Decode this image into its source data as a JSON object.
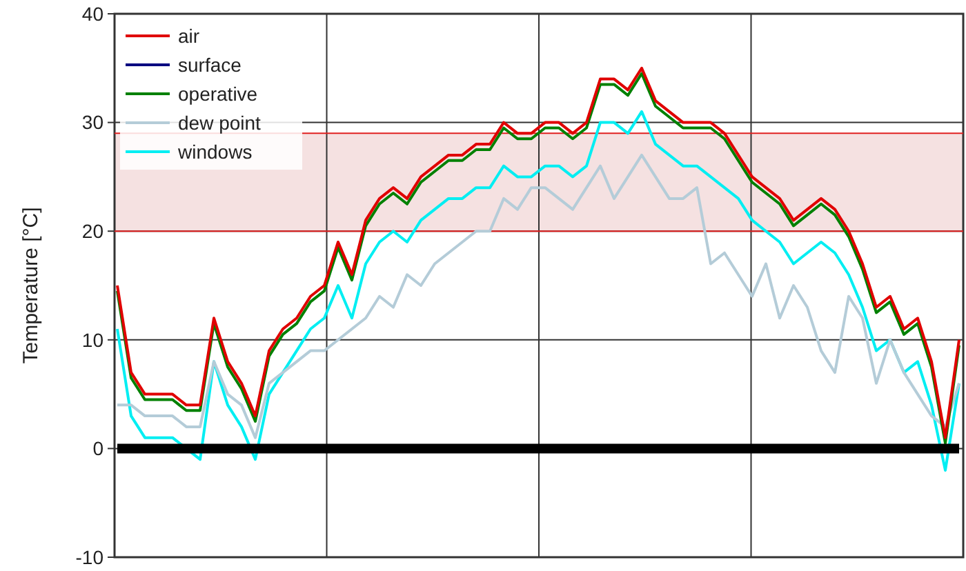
{
  "chart_data": {
    "type": "line",
    "ylabel": "Temperature [°C]",
    "categories": [
      null,
      null,
      null,
      null,
      null,
      null,
      null,
      null,
      null,
      null,
      null,
      null,
      null,
      null,
      null,
      null,
      null,
      null,
      null,
      null,
      null,
      null,
      null,
      null,
      null,
      null,
      null,
      null,
      null,
      null,
      null,
      null,
      null,
      null,
      null,
      null,
      null,
      null,
      null,
      null,
      null,
      null,
      null,
      null,
      null,
      null,
      null,
      null,
      null,
      null,
      null,
      null,
      null,
      null,
      null,
      null,
      null,
      null,
      null,
      null,
      null,
      null
    ],
    "series": [
      {
        "color": "#000000",
        "values": [
          0,
          0,
          0,
          0,
          0,
          0,
          0,
          0,
          0,
          0,
          0,
          0,
          0,
          0,
          0,
          0,
          0,
          0,
          0,
          0,
          0,
          0,
          0,
          0,
          0,
          0,
          0,
          0,
          0,
          0,
          0,
          0,
          0,
          0,
          0,
          0,
          0,
          0,
          0,
          0,
          0,
          0,
          0,
          0,
          0,
          0,
          0,
          0,
          0,
          0,
          0,
          0,
          0,
          0,
          0,
          0,
          0,
          0,
          0,
          0,
          0,
          0
        ]
      },
      {
        "name": "air",
        "color": "#e00000",
        "values": [
          15,
          7,
          5,
          5,
          5,
          4,
          4,
          12,
          8,
          6,
          3,
          9,
          11,
          12,
          14,
          15,
          19,
          16,
          21,
          23,
          24,
          23,
          25,
          26,
          27,
          27,
          28,
          28,
          30,
          29,
          29,
          30,
          30,
          29,
          30,
          34,
          34,
          33,
          35,
          32,
          31,
          30,
          30,
          30,
          29,
          27,
          25,
          24,
          23,
          21,
          22,
          23,
          22,
          20,
          17,
          13,
          14,
          11,
          12,
          8,
          1,
          10
        ]
      },
      {
        "name": "surface",
        "color": "#000080",
        "values": [
          null,
          null,
          null,
          null,
          null,
          null,
          null,
          null,
          null,
          null,
          null,
          null,
          null,
          null,
          null,
          null,
          null,
          null,
          null,
          null,
          null,
          null,
          null,
          null,
          null,
          null,
          null,
          null,
          null,
          null,
          null,
          null,
          null,
          null,
          null,
          null,
          null,
          null,
          null,
          null,
          null,
          null,
          null,
          null,
          null,
          null,
          null,
          null,
          null,
          null,
          null,
          null,
          null,
          null,
          null,
          null,
          null,
          null,
          null,
          null,
          null,
          null
        ]
      },
      {
        "name": "operative",
        "color": "#008000",
        "values": [
          14.5,
          6.5,
          4.5,
          4.5,
          4.5,
          3.5,
          3.5,
          11.5,
          7.5,
          5.5,
          2.5,
          8.5,
          10.5,
          11.5,
          13.5,
          14.5,
          18.5,
          15.5,
          20.5,
          22.5,
          23.5,
          22.5,
          24.5,
          25.5,
          26.5,
          26.5,
          27.5,
          27.5,
          29.5,
          28.5,
          28.5,
          29.5,
          29.5,
          28.5,
          29.5,
          33.5,
          33.5,
          32.5,
          34.5,
          31.5,
          30.5,
          29.5,
          29.5,
          29.5,
          28.5,
          26.5,
          24.5,
          23.5,
          22.5,
          20.5,
          21.5,
          22.5,
          21.5,
          19.5,
          16.5,
          12.5,
          13.5,
          10.5,
          11.5,
          7.5,
          0.5,
          9.5
        ]
      },
      {
        "name": "dew point",
        "color": "#b4ccd8",
        "values": [
          4,
          4,
          3,
          3,
          3,
          2,
          2,
          8,
          5,
          4,
          1,
          6,
          7,
          8,
          9,
          9,
          10,
          11,
          12,
          14,
          13,
          16,
          15,
          17,
          18,
          19,
          20,
          20,
          23,
          22,
          24,
          24,
          23,
          22,
          24,
          26,
          23,
          25,
          27,
          25,
          23,
          23,
          24,
          17,
          18,
          16,
          14,
          17,
          12,
          15,
          13,
          9,
          7,
          14,
          12,
          6,
          10,
          7,
          5,
          3,
          2,
          6
        ]
      },
      {
        "name": "windows",
        "color": "#00eef2",
        "values": [
          11,
          3,
          1,
          1,
          1,
          0,
          -1,
          8,
          4,
          2,
          -1,
          5,
          7,
          9,
          11,
          12,
          15,
          12,
          17,
          19,
          20,
          19,
          21,
          22,
          23,
          23,
          24,
          24,
          26,
          25,
          25,
          26,
          26,
          25,
          26,
          30,
          30,
          29,
          31,
          28,
          27,
          26,
          26,
          25,
          24,
          23,
          21,
          20,
          19,
          17,
          18,
          19,
          18,
          16,
          13,
          9,
          10,
          7,
          8,
          4,
          -2,
          6
        ]
      }
    ],
    "ylim": [
      -10,
      40
    ],
    "yticks": [
      -10,
      0,
      10,
      20,
      30,
      40
    ],
    "grid": true,
    "legend": "top left",
    "bands": [
      {
        "axis": "y",
        "from": 20,
        "to": 29,
        "color": "#f5e1e1"
      }
    ],
    "ref_lines": [
      {
        "axis": "y",
        "value": 20,
        "color": "#e02020"
      },
      {
        "axis": "y",
        "value": 29,
        "color": "#e02020"
      }
    ]
  }
}
